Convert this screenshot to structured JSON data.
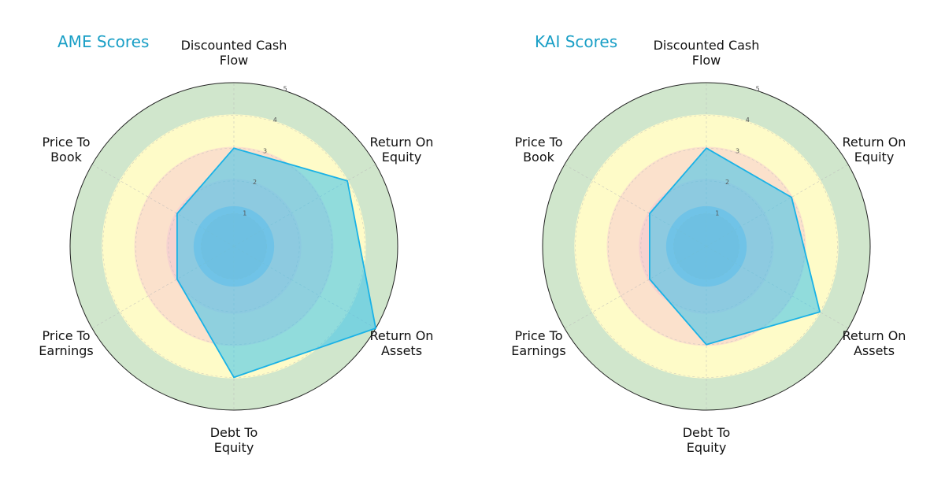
{
  "chart_data": [
    {
      "type": "radar",
      "title": "AME Scores",
      "axes": [
        [
          "Discounted Cash",
          "Flow"
        ],
        [
          "Return On",
          "Equity"
        ],
        [
          "Return On",
          "Assets"
        ],
        [
          "Debt To",
          "Equity"
        ],
        [
          "Price To",
          "Earnings"
        ],
        [
          "Price To",
          "Book"
        ]
      ],
      "values": [
        3,
        4,
        5,
        4,
        2,
        2
      ],
      "rlim": [
        0,
        5
      ],
      "ticks": [
        "1",
        "2",
        "3",
        "4",
        "5"
      ],
      "grid": true
    },
    {
      "type": "radar",
      "title": "KAI Scores",
      "axes": [
        [
          "Discounted Cash",
          "Flow"
        ],
        [
          "Return On",
          "Equity"
        ],
        [
          "Return On",
          "Assets"
        ],
        [
          "Debt To",
          "Equity"
        ],
        [
          "Price To",
          "Earnings"
        ],
        [
          "Price To",
          "Book"
        ]
      ],
      "values": [
        3,
        3,
        4,
        3,
        2,
        2
      ],
      "rlim": [
        0,
        5
      ],
      "ticks": [
        "1",
        "2",
        "3",
        "4",
        "5"
      ],
      "grid": true
    }
  ],
  "colors": {
    "title": "#1a9fc6",
    "series_stroke": "#1ab2e6",
    "series_fill": "#36c2ec",
    "bands": [
      "#a6aec4",
      "#b7c3e0",
      "#f6d2d0",
      "#fbe1cc",
      "#fefbc8",
      "#d0e6cc"
    ],
    "outline": "#222222"
  }
}
